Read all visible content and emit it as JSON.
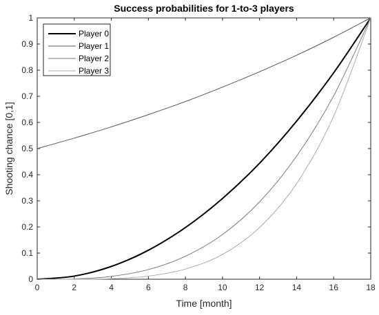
{
  "chart_data": {
    "type": "line",
    "title": "Success probabilities for 1-to-3 players",
    "xlabel": "Time [month]",
    "ylabel": "Shooting chance [0,1]",
    "xlim": [
      0,
      18
    ],
    "ylim": [
      0,
      1
    ],
    "xticks": [
      0,
      2,
      4,
      6,
      8,
      10,
      12,
      14,
      16,
      18
    ],
    "yticks": [
      0,
      0.1,
      0.2,
      0.3,
      0.4,
      0.5,
      0.6,
      0.7,
      0.8,
      0.9,
      1
    ],
    "ytick_labels": [
      "0",
      "0.1",
      "0.2",
      "0.3",
      "0.4",
      "0.5",
      "0.6",
      "0.7",
      "0.8",
      "0.9",
      "1"
    ],
    "grid": false,
    "legend_position": "top-left",
    "x": [
      0,
      2,
      4,
      6,
      8,
      10,
      12,
      14,
      16,
      18
    ],
    "series": [
      {
        "name": "Player 0",
        "color": "#000000",
        "width": 2,
        "values": [
          0,
          0.012,
          0.049,
          0.111,
          0.198,
          0.309,
          0.444,
          0.605,
          0.79,
          1.0
        ]
      },
      {
        "name": "Player 1",
        "color": "#555555",
        "width": 1,
        "values": [
          0.5,
          0.54,
          0.583,
          0.63,
          0.68,
          0.735,
          0.794,
          0.857,
          0.926,
          1.0
        ]
      },
      {
        "name": "Player 2",
        "color": "#7a7a7a",
        "width": 1,
        "values": [
          0,
          0.001,
          0.011,
          0.037,
          0.088,
          0.171,
          0.296,
          0.471,
          0.702,
          1.0
        ]
      },
      {
        "name": "Player 3",
        "color": "#aaaaaa",
        "width": 1,
        "values": [
          0,
          0.0,
          0.002,
          0.012,
          0.039,
          0.095,
          0.198,
          0.366,
          0.624,
          1.0
        ]
      }
    ]
  }
}
